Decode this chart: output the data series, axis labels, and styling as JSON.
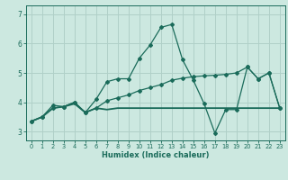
{
  "xlabel": "Humidex (Indice chaleur)",
  "background_color": "#cce8e0",
  "grid_color": "#b0d0c8",
  "line_color": "#1a6b5a",
  "xlim": [
    -0.5,
    23.5
  ],
  "ylim": [
    2.7,
    7.3
  ],
  "yticks": [
    3,
    4,
    5,
    6,
    7
  ],
  "xticks": [
    0,
    1,
    2,
    3,
    4,
    5,
    6,
    7,
    8,
    9,
    10,
    11,
    12,
    13,
    14,
    15,
    16,
    17,
    18,
    19,
    20,
    21,
    22,
    23
  ],
  "series1_x": [
    0,
    1,
    2,
    3,
    4,
    5,
    6,
    7,
    8,
    9,
    10,
    11,
    12,
    13,
    14,
    15,
    16,
    17,
    18,
    19,
    20,
    21,
    22,
    23
  ],
  "series1_y": [
    3.35,
    3.5,
    3.9,
    3.85,
    4.0,
    3.65,
    4.1,
    4.7,
    4.8,
    4.8,
    5.5,
    5.95,
    6.55,
    6.65,
    5.45,
    4.75,
    3.95,
    2.95,
    3.75,
    3.75,
    5.2,
    4.8,
    5.0,
    3.8
  ],
  "series2_x": [
    0,
    1,
    2,
    3,
    4,
    5,
    6,
    7,
    8,
    9,
    10,
    11,
    12,
    13,
    14,
    15,
    16,
    17,
    18,
    19,
    20,
    21,
    22,
    23
  ],
  "series2_y": [
    3.35,
    3.5,
    3.8,
    3.85,
    3.95,
    3.65,
    3.8,
    3.75,
    3.8,
    3.8,
    3.8,
    3.8,
    3.8,
    3.8,
    3.8,
    3.8,
    3.8,
    3.8,
    3.8,
    3.8,
    3.8,
    3.8,
    3.8,
    3.8
  ],
  "series3_x": [
    0,
    1,
    2,
    3,
    4,
    5,
    6,
    7,
    8,
    9,
    10,
    11,
    12,
    13,
    14,
    15,
    16,
    17,
    18,
    19,
    20,
    21,
    22,
    23
  ],
  "series3_y": [
    3.35,
    3.5,
    3.8,
    3.85,
    4.0,
    3.65,
    3.8,
    4.05,
    4.15,
    4.25,
    4.4,
    4.5,
    4.6,
    4.75,
    4.82,
    4.87,
    4.9,
    4.92,
    4.95,
    5.0,
    5.2,
    4.8,
    5.0,
    3.8
  ]
}
